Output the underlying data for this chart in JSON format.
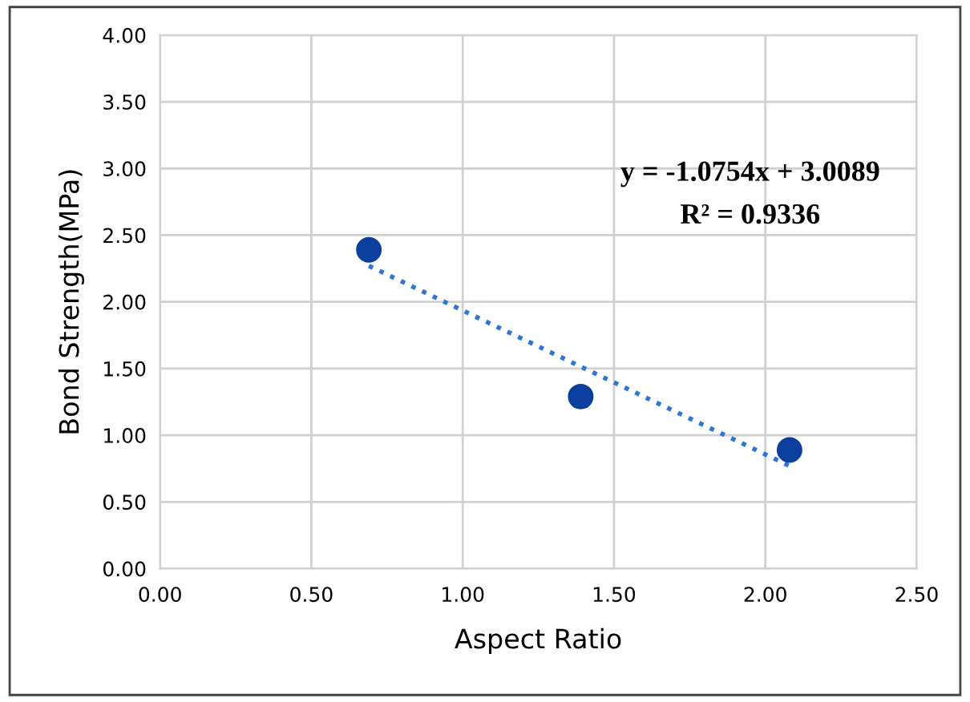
{
  "chart_data": {
    "type": "scatter",
    "xlabel": "Aspect Ratio",
    "ylabel": "Bond Strength(MPa)",
    "series": [
      {
        "color": "#0b3f9e",
        "x": [
          0.69,
          1.39,
          2.08
        ],
        "values": [
          2.39,
          1.29,
          0.89
        ],
        "marker": "circle"
      },
      {
        "type": "line",
        "color": "#2e75d6",
        "x": [
          0.69,
          2.08
        ],
        "values": [
          2.27,
          0.77
        ],
        "line_style": "dotted"
      }
    ],
    "annotations": [
      "y = -1.0754x + 3.0089",
      "R² = 0.9336"
    ],
    "xlim": [
      0,
      2.5
    ],
    "ylim": [
      0,
      4
    ],
    "xticks": [
      {
        "value": 0,
        "label": "0.00"
      },
      {
        "value": 0.5,
        "label": "0.50"
      },
      {
        "value": 1,
        "label": "1.00"
      },
      {
        "value": 1.5,
        "label": "1.50"
      },
      {
        "value": 2,
        "label": "2.00"
      },
      {
        "value": 2.5,
        "label": "2.50"
      }
    ],
    "yticks": [
      {
        "value": 0,
        "label": "0.00"
      },
      {
        "value": 0.5,
        "label": "0.50"
      },
      {
        "value": 1,
        "label": "1.00"
      },
      {
        "value": 1.5,
        "label": "1.50"
      },
      {
        "value": 2,
        "label": "2.00"
      },
      {
        "value": 2.5,
        "label": "2.50"
      },
      {
        "value": 3,
        "label": "3.00"
      },
      {
        "value": 3.5,
        "label": "3.50"
      },
      {
        "value": 4,
        "label": "4.00"
      }
    ],
    "grid": true
  }
}
